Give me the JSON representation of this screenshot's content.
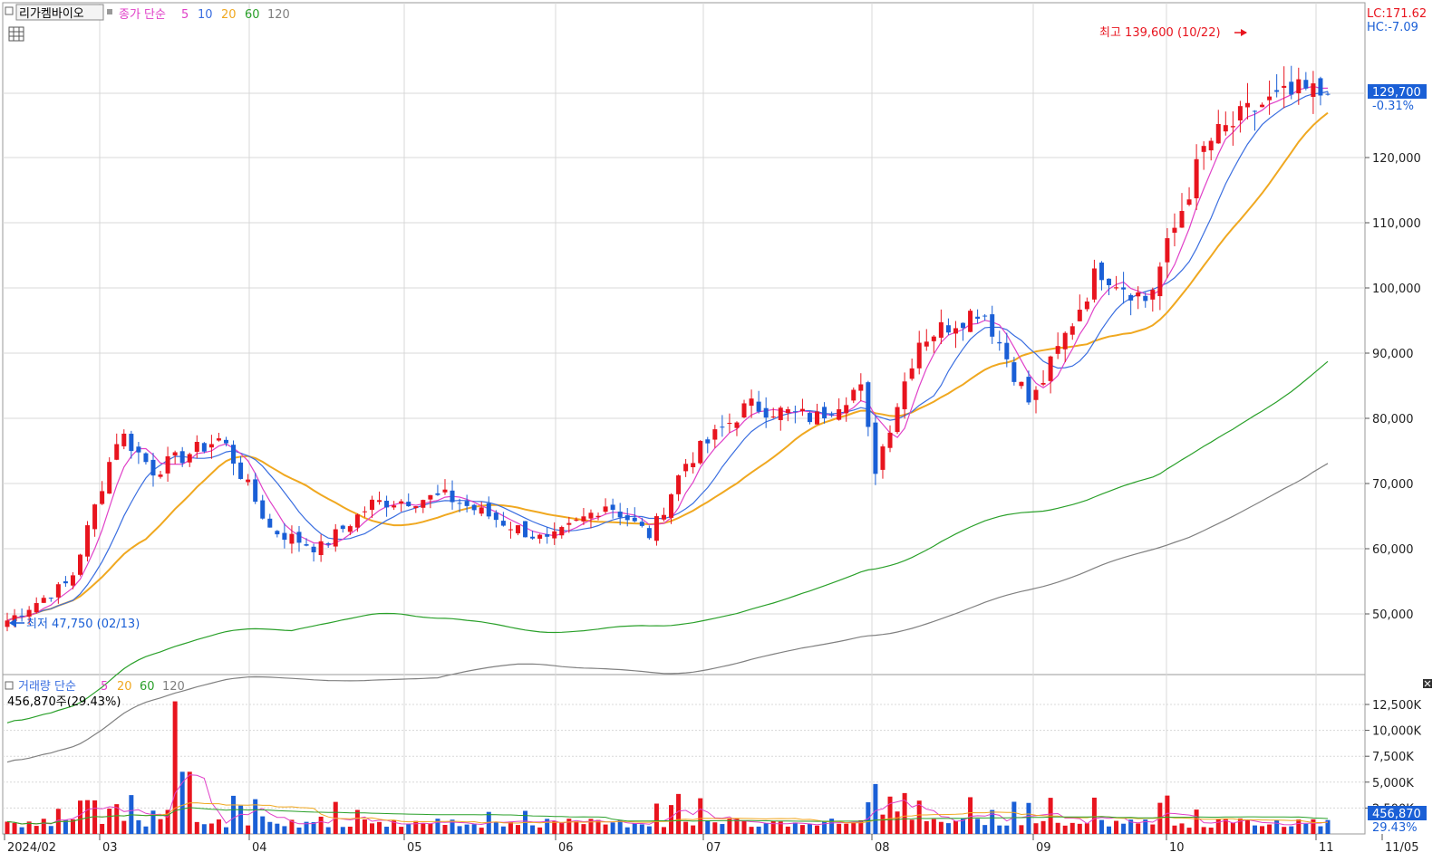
{
  "stock_name": "리가켐바이오",
  "legend": {
    "price_label": "종가 단순",
    "ma_periods": [
      "5",
      "10",
      "20",
      "60",
      "120"
    ],
    "volume_label": "거래량 단순",
    "vol_ma_periods": [
      "5",
      "20",
      "60",
      "120"
    ]
  },
  "right_info": {
    "lc": "LC:171.62",
    "hc": "HC:-7.09"
  },
  "annotations": {
    "high_label": "최고 139,600 (10/22)",
    "low_label": "최저 47,750 (02/13)"
  },
  "last_price": {
    "value": "129,700",
    "change": "-0.31%"
  },
  "volume_info": {
    "readout": "456,870주(29.43%)",
    "last_value": "456,870",
    "last_pct": "29.43%"
  },
  "colors": {
    "up": "#e8141e",
    "down": "#1a5fd6",
    "ma5": "#e040c8",
    "ma10": "#3a6ee0",
    "ma20": "#f0a820",
    "ma60": "#2aa02a",
    "ma120": "#808080",
    "grid": "#d8d8d8"
  },
  "chart_data": [
    {
      "type": "candlestick",
      "y_axis_ticks": [
        "50,000",
        "60,000",
        "70,000",
        "80,000",
        "90,000",
        "100,000",
        "110,000",
        "120,000"
      ],
      "ylim": [
        35000,
        145000
      ],
      "x_tick_labels": [
        "2024/02",
        "03",
        "04",
        "05",
        "06",
        "07",
        "08",
        "09",
        "10",
        "11",
        "11/05"
      ],
      "approx_close_path": [
        {
          "date": "02/13",
          "close": 49000
        },
        {
          "date": "02/26",
          "close": 55000
        },
        {
          "date": "03/05",
          "close": 78000
        },
        {
          "date": "03/12",
          "close": 72000
        },
        {
          "date": "03/26",
          "close": 77000
        },
        {
          "date": "04/05",
          "close": 63000
        },
        {
          "date": "04/15",
          "close": 60000
        },
        {
          "date": "04/26",
          "close": 67000
        },
        {
          "date": "05/10",
          "close": 68000
        },
        {
          "date": "05/22",
          "close": 64000
        },
        {
          "date": "05/31",
          "close": 61000
        },
        {
          "date": "06/12",
          "close": 67000
        },
        {
          "date": "06/21",
          "close": 62000
        },
        {
          "date": "06/28",
          "close": 73000
        },
        {
          "date": "07/10",
          "close": 82000
        },
        {
          "date": "07/24",
          "close": 80000
        },
        {
          "date": "08/02",
          "close": 85000
        },
        {
          "date": "08/05",
          "close": 72000
        },
        {
          "date": "08/14",
          "close": 92000
        },
        {
          "date": "08/27",
          "close": 97000
        },
        {
          "date": "09/06",
          "close": 82000
        },
        {
          "date": "09/20",
          "close": 103000
        },
        {
          "date": "09/30",
          "close": 98000
        },
        {
          "date": "10/11",
          "close": 122000
        },
        {
          "date": "10/22",
          "close": 128000
        },
        {
          "date": "10/31",
          "close": 130000
        },
        {
          "date": "11/05",
          "close": 129700
        }
      ]
    },
    {
      "type": "bar",
      "y_axis_ticks": [
        "2,500K",
        "5,000K",
        "7,500K",
        "10,000K",
        "12,500K"
      ],
      "ylim": [
        0,
        13000000
      ]
    }
  ]
}
